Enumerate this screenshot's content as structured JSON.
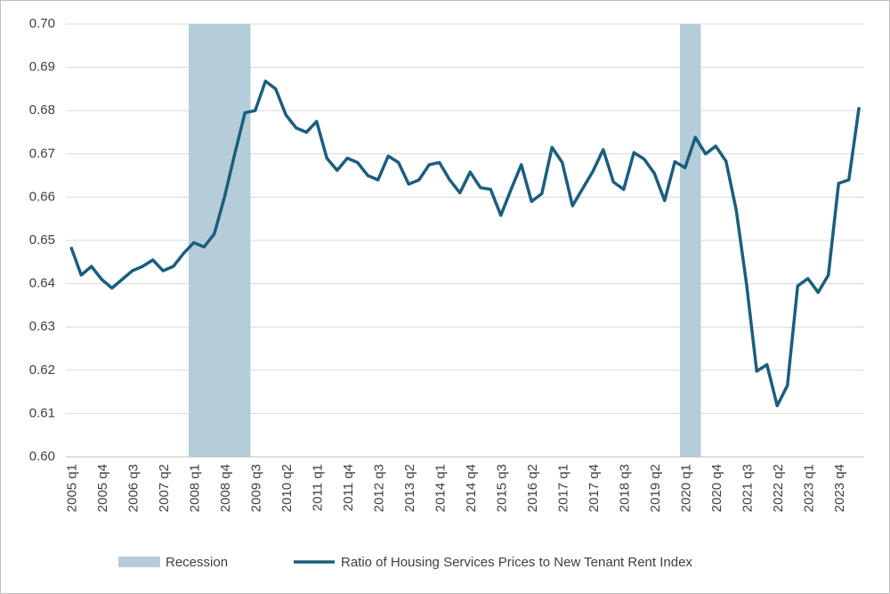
{
  "chart_data": {
    "type": "line",
    "categories": [
      "2005 q1",
      null,
      null,
      "2005 q4",
      null,
      null,
      "2006 q3",
      null,
      null,
      "2007 q2",
      null,
      null,
      "2008 q1",
      null,
      null,
      "2008 q4",
      null,
      null,
      "2009 q3",
      null,
      null,
      "2010 q2",
      null,
      null,
      "2011 q1",
      null,
      null,
      "2011 q4",
      null,
      null,
      "2012 q3",
      null,
      null,
      "2013 q2",
      null,
      null,
      "2014 q1",
      null,
      null,
      "2014 q4",
      null,
      null,
      "2015 q3",
      null,
      null,
      "2016 q2",
      null,
      null,
      "2017 q1",
      null,
      null,
      "2017 q4",
      null,
      null,
      "2018 q3",
      null,
      null,
      "2019 q2",
      null,
      null,
      "2020 q1",
      null,
      null,
      "2020 q4",
      null,
      null,
      "2021 q3",
      null,
      null,
      "2022 q2",
      null,
      null,
      "2023 q1",
      null,
      null,
      "2023 q4",
      null,
      null
    ],
    "series": [
      {
        "name": "Recession",
        "type": "bar",
        "color": "#b4cdd9",
        "values": [
          null,
          null,
          null,
          null,
          null,
          null,
          null,
          null,
          null,
          null,
          null,
          null,
          0.7,
          0.7,
          0.7,
          0.7,
          0.7,
          0.7,
          null,
          null,
          null,
          null,
          null,
          null,
          null,
          null,
          null,
          null,
          null,
          null,
          null,
          null,
          null,
          null,
          null,
          null,
          null,
          null,
          null,
          null,
          null,
          null,
          null,
          null,
          null,
          null,
          null,
          null,
          null,
          null,
          null,
          null,
          null,
          null,
          null,
          null,
          null,
          null,
          null,
          null,
          0.7,
          0.7,
          null,
          null,
          null,
          null,
          null,
          null,
          null,
          null,
          null,
          null,
          null,
          null,
          null,
          null,
          null,
          null
        ]
      },
      {
        "name": "Ratio of Housing Services Prices to New Tenant Rent Index",
        "type": "line",
        "color": "#1b5e7e",
        "values": [
          0.6485,
          0.642,
          0.644,
          0.641,
          0.639,
          0.641,
          0.643,
          0.644,
          0.6455,
          0.643,
          0.644,
          0.647,
          0.6495,
          0.6485,
          0.6515,
          0.66,
          0.67,
          0.6795,
          0.68,
          0.6868,
          0.685,
          0.679,
          0.676,
          0.675,
          0.6775,
          0.669,
          0.6662,
          0.669,
          0.668,
          0.665,
          0.664,
          0.6695,
          0.668,
          0.663,
          0.664,
          0.6675,
          0.668,
          0.664,
          0.661,
          0.6658,
          0.6622,
          0.6618,
          0.6558,
          0.6618,
          0.6675,
          0.659,
          0.6608,
          0.6715,
          0.668,
          0.658,
          0.662,
          0.666,
          0.671,
          0.6635,
          0.6618,
          0.6703,
          0.6688,
          0.6655,
          0.6592,
          0.6682,
          0.6668,
          0.6738,
          0.67,
          0.6718,
          0.6683,
          0.657,
          0.64,
          0.6198,
          0.6213,
          0.6118,
          0.6165,
          0.6395,
          0.6412,
          0.638,
          0.642,
          0.6632,
          0.664,
          0.6808
        ]
      }
    ],
    "ylim": [
      0.6,
      0.7
    ],
    "yticks": [
      {
        "value": 0.6,
        "label": "0.60"
      },
      0.61,
      0.62,
      0.63,
      0.64,
      0.65,
      0.66,
      0.67,
      0.68,
      0.69,
      {
        "value": 0.7,
        "label": "0.70"
      }
    ],
    "grid": true,
    "legend": "bottom"
  }
}
